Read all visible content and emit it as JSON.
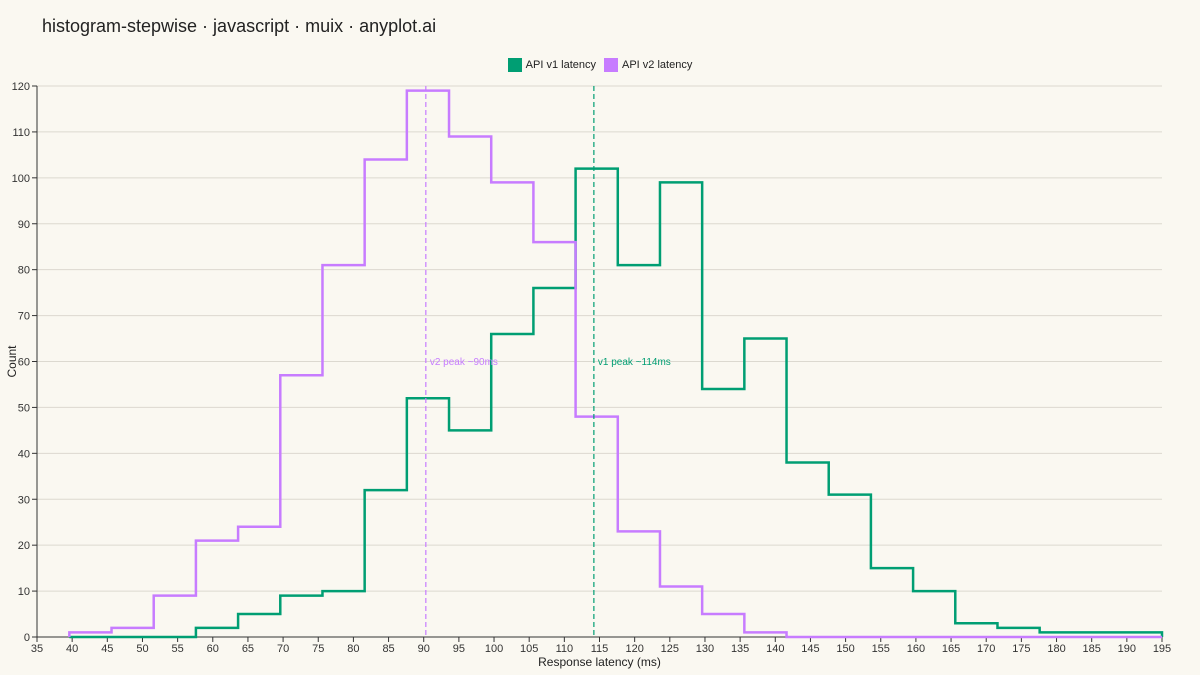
{
  "header": {
    "title": "histogram-stepwise · javascript · muix · anyplot.ai"
  },
  "chart_data": {
    "type": "histogram-step",
    "xlabel": "Response latency (ms)",
    "ylabel": "Count",
    "xlim": [
      35,
      195
    ],
    "ylim": [
      0,
      120
    ],
    "xticks": [
      35,
      40,
      45,
      50,
      55,
      60,
      65,
      70,
      75,
      80,
      85,
      90,
      95,
      100,
      105,
      110,
      115,
      120,
      125,
      130,
      135,
      140,
      145,
      150,
      155,
      160,
      165,
      170,
      175,
      180,
      185,
      190,
      195
    ],
    "yticks": [
      0,
      10,
      20,
      30,
      40,
      50,
      60,
      70,
      80,
      90,
      100,
      110,
      120
    ],
    "grid": "horizontal",
    "legend_position": "top-center",
    "bin_edges": [
      39.6,
      45.6,
      51.6,
      57.6,
      63.6,
      69.6,
      75.6,
      81.6,
      87.6,
      93.6,
      99.6,
      105.6,
      111.6,
      117.6,
      123.6,
      129.6,
      135.6,
      141.6,
      147.6,
      153.6,
      159.6,
      165.6,
      171.6,
      177.6,
      183.6,
      189.6,
      195
    ],
    "series": [
      {
        "name": "API v1 latency",
        "color": "#009e73",
        "values": [
          0,
          0,
          0,
          2,
          5,
          9,
          10,
          32,
          52,
          45,
          66,
          76,
          102,
          81,
          99,
          54,
          65,
          38,
          31,
          15,
          10,
          3,
          2,
          1,
          1,
          1
        ]
      },
      {
        "name": "API v2 latency",
        "color": "#c77cff",
        "values": [
          1,
          2,
          9,
          21,
          24,
          57,
          81,
          104,
          119,
          109,
          99,
          86,
          48,
          23,
          11,
          5,
          1,
          0,
          0,
          0,
          0,
          0,
          0,
          0,
          0,
          0
        ]
      }
    ],
    "annotations": [
      {
        "x": 90.3,
        "label": "v2 peak ~90ms",
        "color": "#c77cff"
      },
      {
        "x": 114.2,
        "label": "v1 peak ~114ms",
        "color": "#009e73"
      }
    ]
  }
}
